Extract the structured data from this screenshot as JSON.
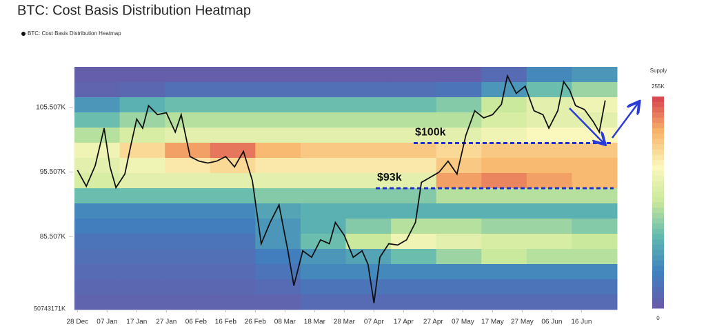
{
  "chart_data": {
    "type": "heatmap-line",
    "title": "BTC: Cost Basis Distribution Heatmap",
    "series": [
      {
        "name": "BTC: Cost Basis Distribution Heatmap",
        "color": "#111111",
        "x": [
          "28 Dec",
          "31 Dec",
          "03 Jan",
          "06 Jan",
          "08 Jan",
          "10 Jan",
          "13 Jan",
          "15 Jan",
          "17 Jan",
          "19 Jan",
          "21 Jan",
          "24 Jan",
          "27 Jan",
          "30 Jan",
          "01 Feb",
          "04 Feb",
          "07 Feb",
          "10 Feb",
          "13 Feb",
          "16 Feb",
          "19 Feb",
          "22 Feb",
          "25 Feb",
          "28 Feb",
          "03 Mar",
          "06 Mar",
          "09 Mar",
          "11 Mar",
          "14 Mar",
          "17 Mar",
          "20 Mar",
          "23 Mar",
          "25 Mar",
          "28 Mar",
          "31 Mar",
          "03 Apr",
          "05 Apr",
          "07 Apr",
          "09 Apr",
          "12 Apr",
          "15 Apr",
          "18 Apr",
          "21 Apr",
          "23 Apr",
          "26 Apr",
          "29 Apr",
          "02 May",
          "05 May",
          "08 May",
          "11 May",
          "14 May",
          "17 May",
          "20 May",
          "22 May",
          "25 May",
          "28 May",
          "31 May",
          "03 Jun",
          "05 Jun",
          "08 Jun",
          "10 Jun",
          "12 Jun",
          "14 Jun",
          "17 Jun",
          "20 Jun",
          "22 Jun",
          "24 Jun"
        ],
        "values": [
          95.8,
          93.3,
          96.5,
          102.3,
          96.3,
          93.1,
          95.2,
          99.6,
          103.7,
          102.3,
          105.8,
          104.4,
          104.7,
          101.7,
          104.4,
          97.9,
          97.2,
          96.9,
          97.2,
          97.9,
          96.3,
          98.7,
          94.2,
          84.4,
          87.7,
          90.4,
          83.3,
          77.9,
          83.3,
          82.3,
          85.0,
          84.4,
          87.7,
          85.7,
          82.3,
          83.3,
          81.2,
          75.2,
          82.3,
          84.4,
          84.2,
          85.0,
          87.7,
          93.9,
          94.7,
          95.5,
          97.2,
          95.2,
          101.2,
          105.0,
          103.9,
          104.4,
          106.0,
          110.4,
          107.7,
          108.8,
          105.0,
          104.4,
          102.3,
          105.0,
          109.5,
          108.2,
          105.8,
          105.2,
          103.3,
          101.7,
          106.6
        ]
      }
    ],
    "xlim": [
      "27 Dec",
      "28 Jun"
    ],
    "xticks": [
      "28 Dec",
      "07 Jan",
      "17 Jan",
      "27 Jan",
      "06 Feb",
      "16 Feb",
      "26 Feb",
      "08 Mar",
      "18 Mar",
      "28 Mar",
      "07 Apr",
      "17 Apr",
      "27 Apr",
      "07 May",
      "17 May",
      "27 May",
      "06 Jun",
      "16 Jun"
    ],
    "ylim": [
      74.2,
      111.8
    ],
    "yticks": [
      {
        "value": 105.507,
        "label": "105.507K"
      },
      {
        "value": 95.507,
        "label": "95.507K"
      },
      {
        "value": 85.507,
        "label": "85.507K"
      }
    ],
    "y_bottom_label": "50743171K",
    "heatmap": [
      [
        5,
        5,
        5,
        5,
        5,
        5,
        5,
        5,
        5,
        20,
        50,
        60
      ],
      [
        10,
        15,
        25,
        25,
        25,
        25,
        25,
        25,
        30,
        60,
        90,
        110
      ],
      [
        60,
        80,
        90,
        90,
        90,
        90,
        90,
        90,
        100,
        130,
        150,
        160
      ],
      [
        90,
        110,
        120,
        120,
        120,
        120,
        120,
        120,
        120,
        140,
        150,
        150
      ],
      [
        120,
        140,
        150,
        150,
        150,
        150,
        150,
        150,
        150,
        160,
        170,
        170
      ],
      [
        160,
        190,
        220,
        235,
        210,
        200,
        200,
        200,
        190,
        200,
        200,
        200
      ],
      [
        150,
        160,
        180,
        190,
        180,
        180,
        180,
        180,
        200,
        210,
        210,
        210
      ],
      [
        140,
        150,
        150,
        150,
        150,
        150,
        150,
        150,
        220,
        230,
        220,
        210
      ],
      [
        90,
        90,
        90,
        90,
        100,
        100,
        100,
        100,
        120,
        120,
        120,
        120
      ],
      [
        50,
        50,
        50,
        50,
        70,
        80,
        80,
        80,
        80,
        80,
        80,
        80
      ],
      [
        40,
        40,
        40,
        40,
        60,
        80,
        100,
        120,
        120,
        110,
        110,
        100
      ],
      [
        30,
        30,
        30,
        30,
        60,
        90,
        130,
        160,
        150,
        140,
        140,
        130
      ],
      [
        25,
        25,
        25,
        25,
        40,
        60,
        70,
        90,
        110,
        130,
        120,
        120
      ],
      [
        20,
        20,
        20,
        20,
        30,
        50,
        50,
        50,
        50,
        50,
        50,
        50
      ],
      [
        15,
        15,
        15,
        15,
        20,
        30,
        30,
        30,
        30,
        30,
        30,
        30
      ],
      [
        10,
        10,
        10,
        10,
        10,
        20,
        20,
        20,
        20,
        20,
        20,
        20
      ]
    ],
    "colorbar": {
      "title": "Supply",
      "range": [
        0,
        255
      ],
      "ticks": [
        {
          "value": 255,
          "label": "255K"
        },
        0
      ],
      "colorscale": [
        "#6a5aa8",
        "#3f7fbf",
        "#5fb8b0",
        "#c8e89a",
        "#fbf8bd",
        "#f8b56b",
        "#d6404e"
      ]
    },
    "annotations": [
      {
        "text": "$100k",
        "value": 100,
        "color": "#2233cc"
      },
      {
        "text": "$93k",
        "value": 93,
        "color": "#2233cc"
      }
    ]
  }
}
